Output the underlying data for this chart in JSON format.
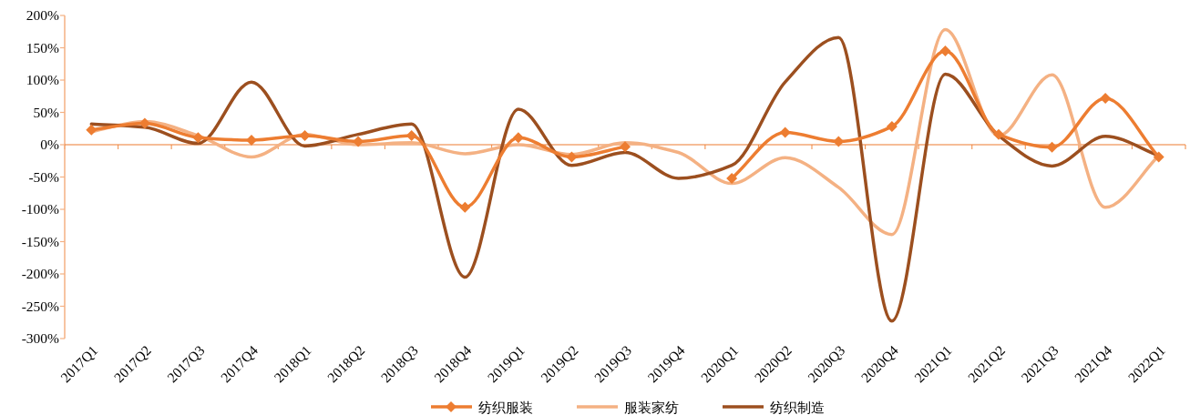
{
  "chart_data": {
    "type": "line",
    "categories": [
      "2017Q1",
      "2017Q2",
      "2017Q3",
      "2017Q4",
      "2018Q1",
      "2018Q2",
      "2018Q3",
      "2018Q4",
      "2019Q1",
      "2019Q2",
      "2019Q3",
      "2019Q4",
      "2020Q1",
      "2020Q2",
      "2020Q3",
      "2020Q4",
      "2021Q1",
      "2021Q2",
      "2021Q3",
      "2021Q4",
      "2022Q1"
    ],
    "series": [
      {
        "name": "纺织服装",
        "color": "#ed7d31",
        "marker": "diamond",
        "values": [
          23,
          33,
          11,
          7,
          14,
          5,
          14,
          -97,
          11,
          -19,
          -3,
          null,
          -52,
          19,
          5,
          28,
          145,
          16,
          -4,
          72,
          -19
        ]
      },
      {
        "name": "服装家纺",
        "color": "#f4b183",
        "marker": "none",
        "values": [
          20,
          36,
          14,
          -19,
          16,
          0,
          3,
          -14,
          0,
          -15,
          3,
          -12,
          -60,
          -20,
          -66,
          -139,
          178,
          14,
          108,
          -97,
          -17
        ]
      },
      {
        "name": "纺织制造",
        "color": "#9c4f1f",
        "marker": "none",
        "values": [
          32,
          27,
          2,
          97,
          -2,
          16,
          32,
          -205,
          55,
          -32,
          -12,
          -52,
          -32,
          97,
          166,
          -273,
          109,
          14,
          -33,
          13,
          -17
        ]
      }
    ],
    "ylim": [
      -300,
      200
    ],
    "yticks": [
      {
        "value": -300,
        "label": "-300%"
      },
      {
        "value": -250,
        "label": "-250%"
      },
      {
        "value": -200,
        "label": "-200%"
      },
      {
        "value": -150,
        "label": "-150%"
      },
      {
        "value": -100,
        "label": "-100%"
      },
      {
        "value": -50,
        "label": "-50%"
      },
      {
        "value": 0,
        "label": "0%"
      },
      {
        "value": 50,
        "label": "50%"
      },
      {
        "value": 100,
        "label": "100%"
      },
      {
        "value": 150,
        "label": "150%"
      },
      {
        "value": 200,
        "label": "200%"
      }
    ],
    "ref_lines": [
      {
        "axis": "y",
        "value": 0,
        "color": "#ed7d31"
      }
    ],
    "legend": "bottom",
    "line_style": "solid"
  }
}
